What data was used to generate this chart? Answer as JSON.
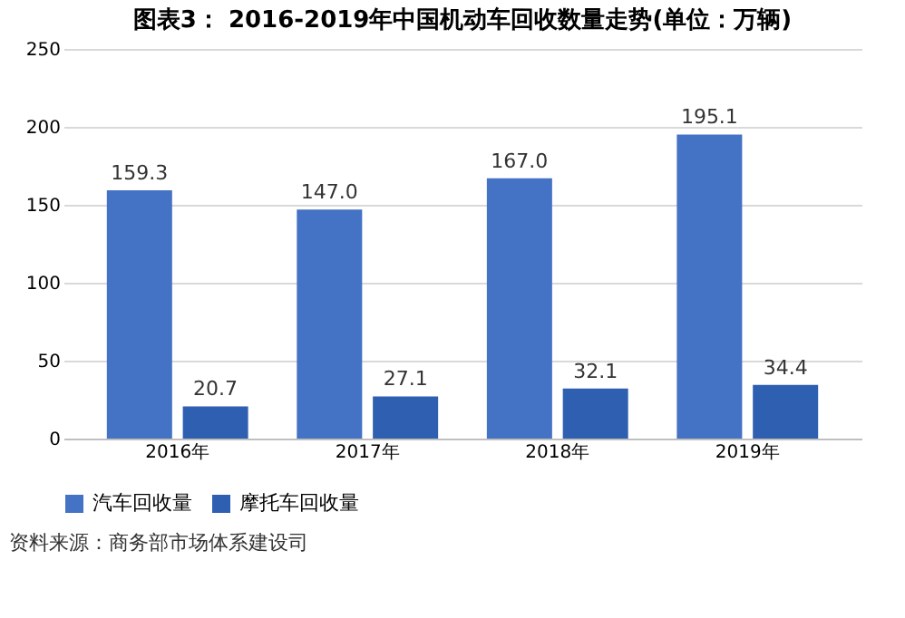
{
  "chart_data": {
    "type": "bar",
    "title": "图表3： 2016-2019年中国机动车回收数量走势(单位：万辆)",
    "categories": [
      "2016年",
      "2017年",
      "2018年",
      "2019年"
    ],
    "series": [
      {
        "name": "汽车回收量",
        "color": "#4472c4",
        "values": [
          159.3,
          147.0,
          167.0,
          195.1
        ],
        "value_labels": [
          "159.3",
          "147.0",
          "167.0",
          "195.1"
        ]
      },
      {
        "name": "摩托车回收量",
        "color": "#2e5fb0",
        "values": [
          20.7,
          27.1,
          32.1,
          34.4
        ],
        "value_labels": [
          "20.7",
          "27.1",
          "32.1",
          "34.4"
        ]
      }
    ],
    "ylim": [
      0,
      250
    ],
    "yticks": [
      0,
      50,
      100,
      150,
      200,
      250
    ],
    "grid": "y",
    "legend": "bottom",
    "annotations": [
      "资料来源：商务部市场体系建设司"
    ]
  }
}
